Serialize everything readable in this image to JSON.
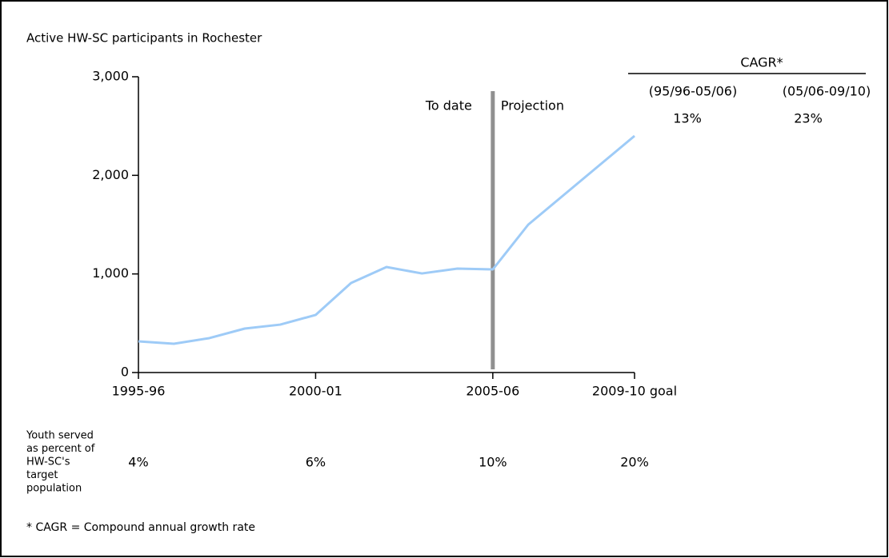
{
  "chart_data": {
    "type": "line",
    "title": "Active HW-SC participants in Rochester",
    "x": [
      1995,
      1996,
      1997,
      1998,
      1999,
      2000,
      2001,
      2002,
      2003,
      2004,
      2005,
      2006,
      2007,
      2008,
      2009
    ],
    "series": [
      {
        "color": "#9ecbf7",
        "values": [
          316,
          292,
          349,
          446,
          486,
          584,
          908,
          1070,
          1005,
          1054,
          1046,
          1500,
          1800,
          2100,
          2400
        ]
      }
    ],
    "xlim": [
      1995,
      2009
    ],
    "xticks": [
      {
        "value": 1995,
        "label": "1995-96"
      },
      {
        "value": 2000,
        "label": "2000-01"
      },
      {
        "value": 2005,
        "label": "2005-06"
      },
      {
        "value": 2009,
        "label": "2009-10 goal"
      }
    ],
    "ylim": [
      0,
      3000
    ],
    "yticks": [
      0,
      {
        "value": 1000,
        "label": "1,000"
      },
      {
        "value": 2000,
        "label": "2,000"
      },
      {
        "value": 3000,
        "label": "3,000"
      }
    ],
    "divider": {
      "x": 2005,
      "color": "#909090",
      "labels": [
        "To date",
        "Projection"
      ]
    },
    "cagr": {
      "title": "CAGR*",
      "periods": [
        "(95/96-05/06)",
        "(05/06-09/10)"
      ],
      "values": [
        "13%",
        "23%"
      ]
    },
    "youth_served": {
      "label": [
        "Youth served",
        "as percent of",
        "HW-SC's",
        "target",
        "population"
      ],
      "values": [
        "4%",
        "6%",
        "10%",
        "20%"
      ]
    },
    "footnote": "* CAGR = Compound annual growth rate"
  }
}
